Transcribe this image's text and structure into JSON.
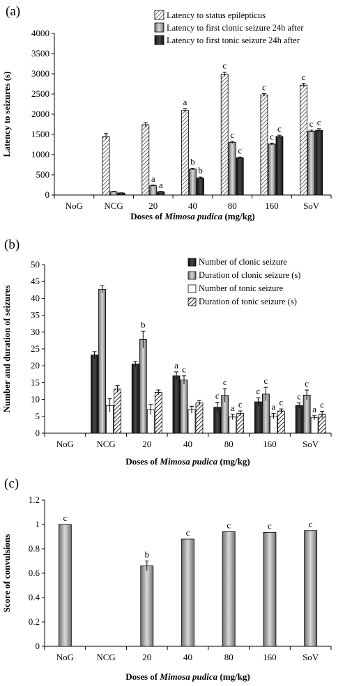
{
  "chart_data": [
    {
      "panel": "(a)",
      "type": "bar",
      "xlabel_prefix": "Doses of ",
      "xlabel_italic": "Mimosa pudica",
      "xlabel_suffix": " (mg/kg)",
      "ylabel": "Latency to seizures (s)",
      "ylim": [
        0,
        4000
      ],
      "yticks": [
        0,
        500,
        1000,
        1500,
        2000,
        2500,
        3000,
        3500,
        4000
      ],
      "categories": [
        "NoG",
        "NCG",
        "20",
        "40",
        "80",
        "160",
        "SoV"
      ],
      "legend_position": "top-right",
      "series": [
        {
          "name": "Latency to status epilepticus",
          "pattern": "hatch-light",
          "values": [
            0,
            1450,
            1740,
            2090,
            2990,
            2480,
            2720
          ],
          "errors": [
            0,
            70,
            50,
            50,
            50,
            30,
            40
          ],
          "labels": [
            "",
            "",
            "",
            "a",
            "c",
            "c",
            "c"
          ]
        },
        {
          "name": "Latency to first clonic seizure 24h after",
          "pattern": "grey-gradient",
          "values": [
            0,
            80,
            230,
            640,
            1300,
            1260,
            1580
          ],
          "errors": [
            0,
            10,
            15,
            20,
            25,
            25,
            25
          ],
          "labels": [
            "",
            "",
            "a",
            "b",
            "c",
            "c",
            "c"
          ]
        },
        {
          "name": "Latency to first tonic seizure 24h after",
          "pattern": "dark",
          "values": [
            0,
            50,
            80,
            420,
            920,
            1450,
            1600
          ],
          "errors": [
            0,
            5,
            10,
            25,
            20,
            30,
            40
          ],
          "labels": [
            "",
            "",
            "a",
            "b",
            "c",
            "c",
            "c"
          ]
        }
      ]
    },
    {
      "panel": "(b)",
      "type": "bar",
      "xlabel_prefix": "Doses of ",
      "xlabel_italic": "Mimosa pudica",
      "xlabel_suffix": " (mg/kg)",
      "ylabel": "Number and duration  of seizures",
      "ylim": [
        0,
        50
      ],
      "yticks": [
        0,
        5,
        10,
        15,
        20,
        25,
        30,
        35,
        40,
        45,
        50
      ],
      "categories": [
        "NoG",
        "NCG",
        "20",
        "40",
        "80",
        "160",
        "SoV"
      ],
      "legend_position": "top-right",
      "series": [
        {
          "name": "Number of clonic seizure",
          "pattern": "dark",
          "values": [
            0,
            23.2,
            20.5,
            17,
            7.7,
            9.3,
            8.2
          ],
          "errors": [
            0,
            1,
            0.8,
            1.2,
            1.5,
            1.2,
            0.8
          ],
          "labels": [
            "",
            "",
            "",
            "a",
            "c",
            "c",
            "c"
          ]
        },
        {
          "name": "Duration of clonic seizure (s)",
          "pattern": "grey-gradient",
          "values": [
            0,
            42.7,
            27.8,
            15.8,
            11.2,
            11.6,
            11.3
          ],
          "errors": [
            0,
            1,
            2.5,
            1.2,
            2,
            2,
            1.5
          ],
          "labels": [
            "",
            "",
            "b",
            "c",
            "c",
            "c",
            "c"
          ]
        },
        {
          "name": "Number of tonic seizure",
          "pattern": "white",
          "values": [
            0,
            8.2,
            7,
            7,
            4.8,
            5.1,
            4.6
          ],
          "errors": [
            0,
            2,
            1.5,
            1,
            0.8,
            0.8,
            0.6
          ],
          "labels": [
            "",
            "",
            "",
            "",
            "a",
            "a",
            "a"
          ]
        },
        {
          "name": "Duration of tonic seizure (s)",
          "pattern": "hatch-dark",
          "values": [
            0,
            13.1,
            12.1,
            9,
            5.9,
            6.6,
            5.5
          ],
          "errors": [
            0,
            1,
            0.7,
            0.7,
            0.7,
            0.6,
            1
          ],
          "labels": [
            "",
            "",
            "",
            "",
            "c",
            "c",
            "c"
          ]
        }
      ]
    },
    {
      "panel": "(c)",
      "type": "bar",
      "xlabel_prefix": "Doses of ",
      "xlabel_italic": "Mimosa pudica",
      "xlabel_suffix": " (mg/kg)",
      "ylabel": "Score of convulsions",
      "ylim": [
        0,
        1.2
      ],
      "yticks": [
        "0",
        "0.2",
        "0.4",
        "0.6",
        "0.8",
        "1",
        "1.2"
      ],
      "categories": [
        "NoG",
        "NCG",
        "20",
        "40",
        "80",
        "160",
        "SoV"
      ],
      "series": [
        {
          "pattern": "grey-gradient",
          "values": [
            1,
            0,
            0.66,
            0.88,
            0.94,
            0.935,
            0.95
          ],
          "errors": [
            0,
            0,
            0.04,
            0,
            0,
            0,
            0
          ],
          "labels": [
            "c",
            "",
            "b",
            "c",
            "c",
            "c",
            "c"
          ]
        }
      ]
    }
  ]
}
